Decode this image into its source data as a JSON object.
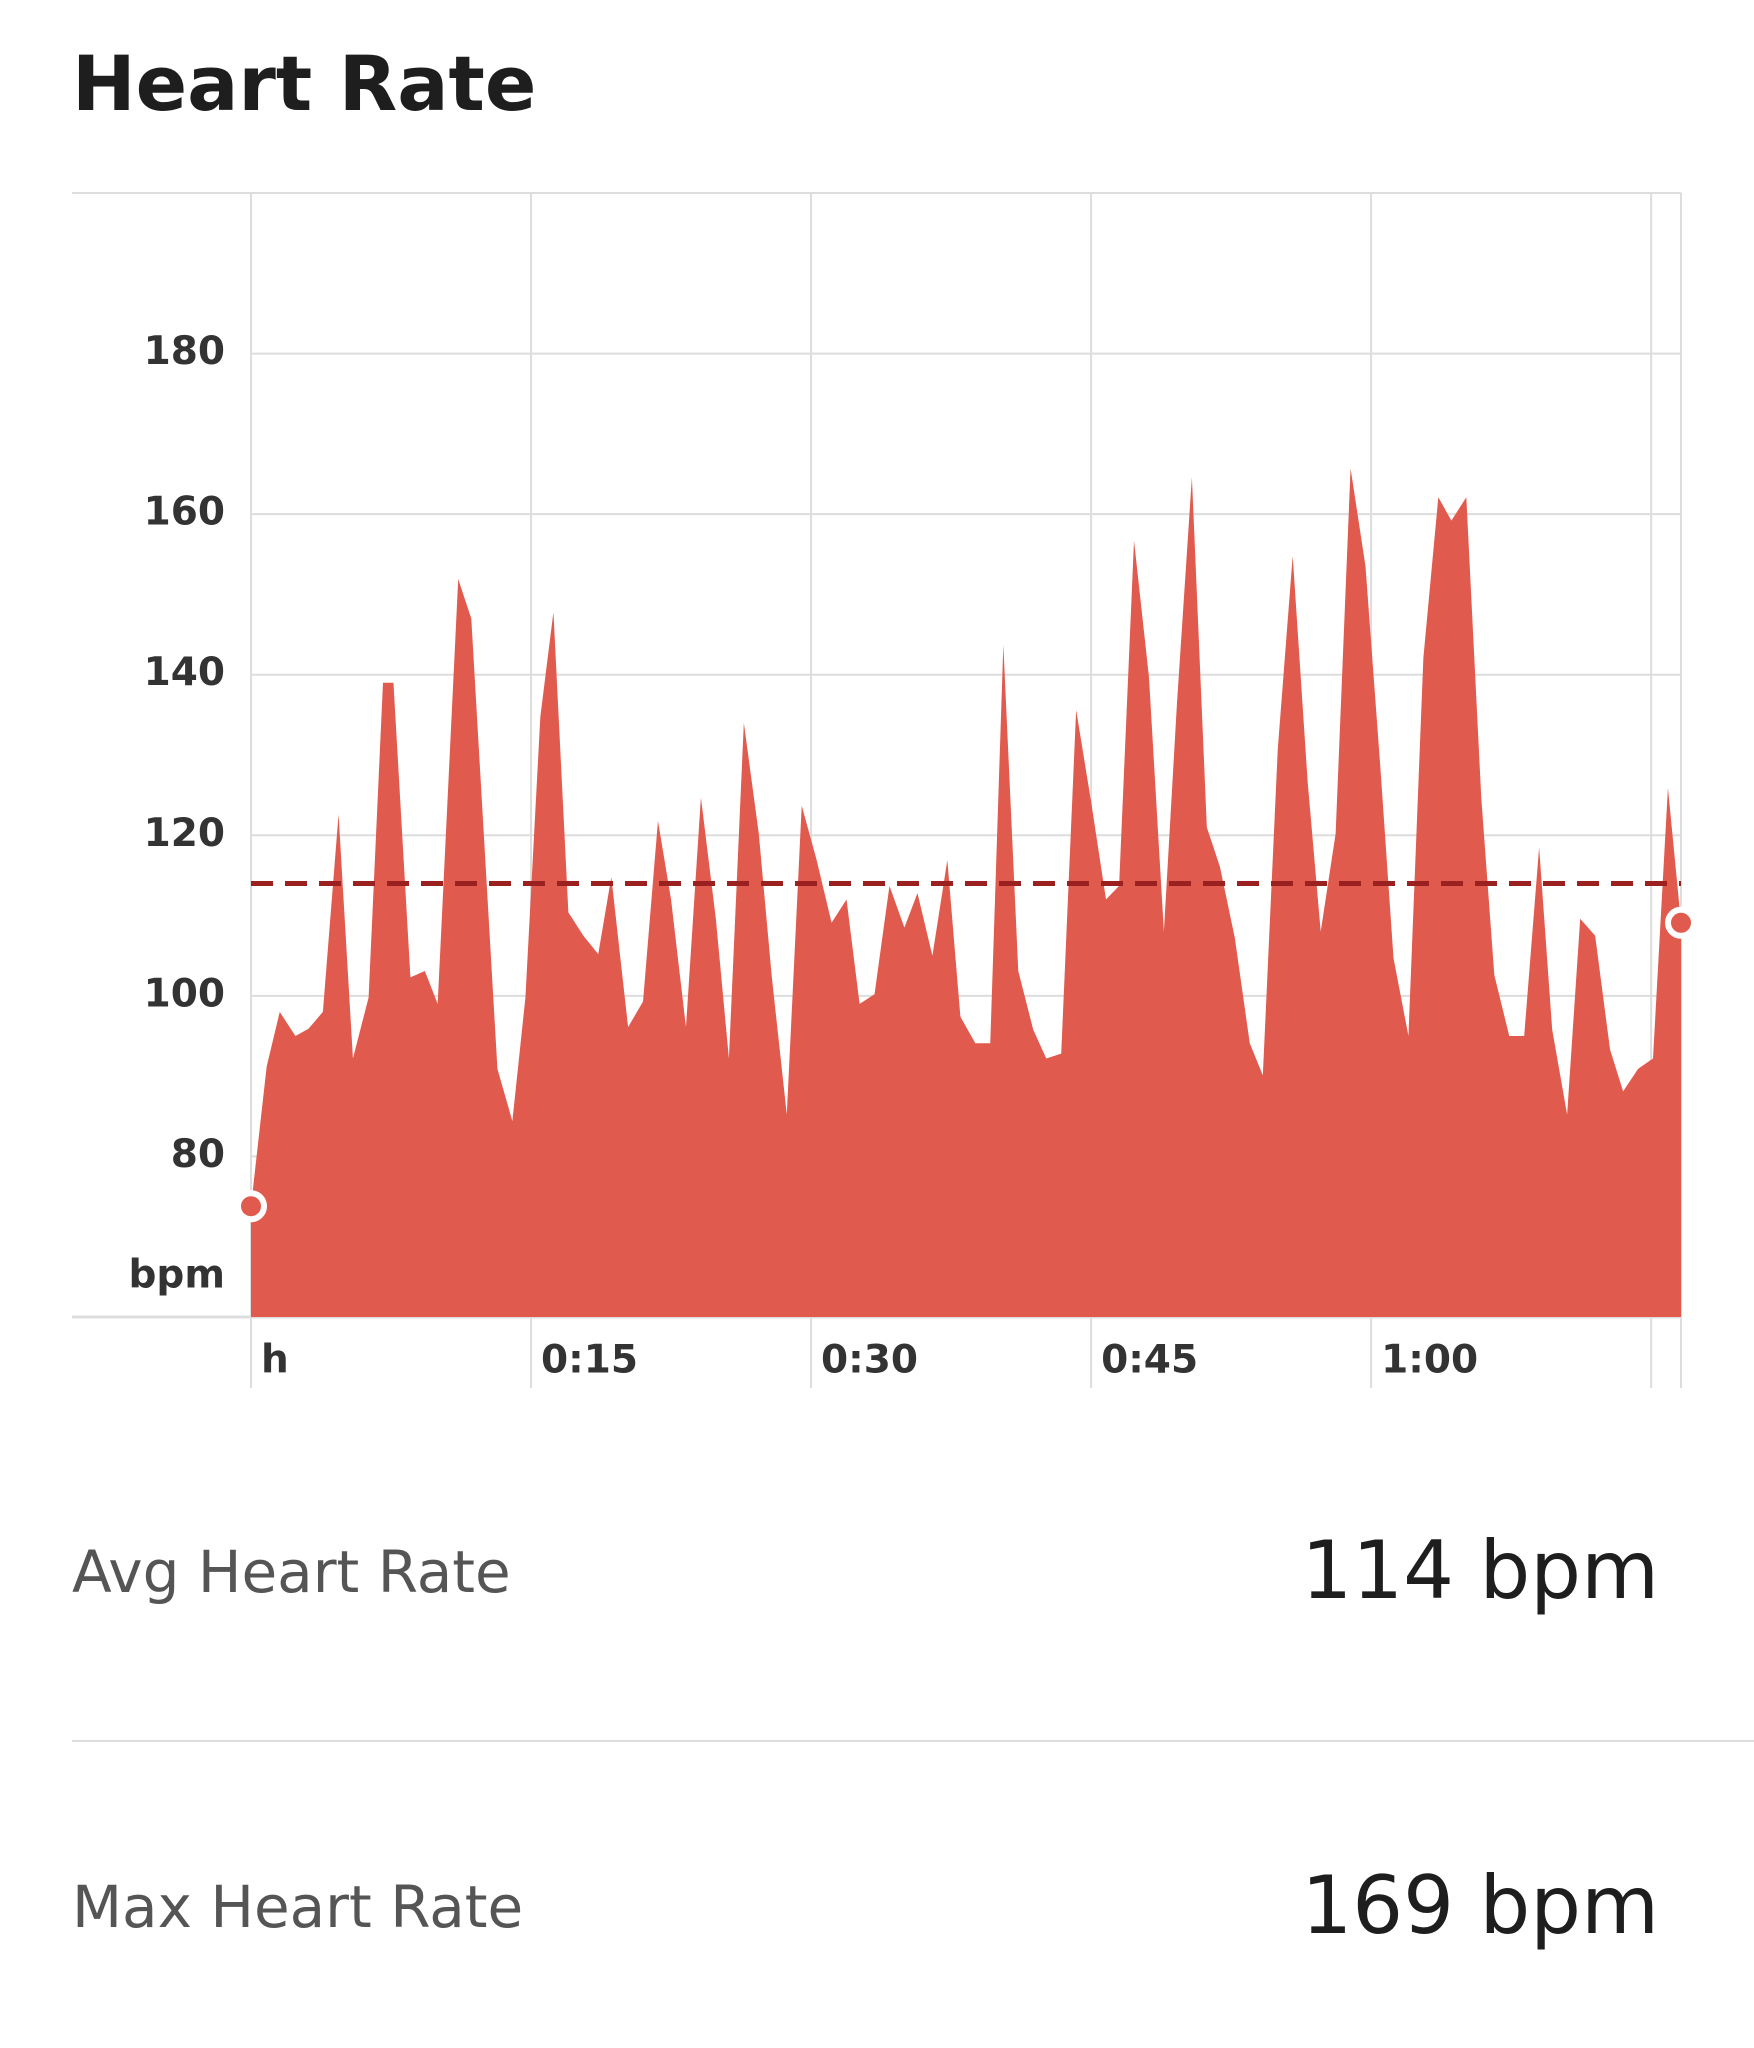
{
  "chart_data": {
    "type": "area",
    "title": "Heart Rate",
    "y_label": "bpm",
    "color": "#e05a4e",
    "average": 114,
    "average_color": "#9b2121",
    "x": [
      0,
      0.84,
      1.54,
      2.38,
      3.08,
      3.85,
      4.69,
      5.46,
      6.3,
      7.07,
      7.63,
      8.54,
      9.31,
      10.0,
      11.1,
      11.8,
      13.2,
      14.0,
      14.7,
      15.5,
      16.2,
      17.0,
      17.8,
      18.6,
      19.3,
      20.2,
      21.0,
      21.8,
      22.5,
      23.3,
      24.1,
      24.9,
      25.6,
      26.4,
      27.2,
      27.9,
      28.7,
      29.5,
      30.3,
      31.1,
      31.9,
      32.6,
      33.4,
      34.2,
      35.0,
      35.7,
      36.5,
      37.3,
      38.0,
      38.8,
      39.6,
      40.3,
      41.1,
      41.9,
      42.6,
      43.4,
      44.2,
      45.0,
      45.8,
      46.5,
      47.3,
      48.1,
      48.9,
      49.6,
      50.4,
      51.2,
      51.9,
      52.7,
      53.5,
      54.2,
      55.0,
      55.8,
      56.6,
      57.3,
      58.1,
      58.9,
      59.7,
      60.5,
      61.2,
      62.0,
      62.8,
      63.6,
      64.3,
      65.1,
      65.9,
      66.6,
      67.4,
      68.2,
      69.0,
      69.7,
      70.5,
      71.2,
      72.0,
      72.8,
      73.5,
      74.3,
      75.1,
      75.9,
      76.6
    ],
    "values": [
      73.8,
      91.2,
      98.0,
      95.0,
      95.9,
      98.0,
      122.6,
      92.2,
      99.8,
      139.0,
      139.0,
      102.3,
      103.1,
      99.0,
      151.9,
      147.0,
      90.9,
      84.4,
      99.8,
      134.8,
      147.8,
      110.4,
      107.5,
      105.2,
      114.8,
      96.1,
      99.3,
      121.8,
      112.0,
      96.1,
      124.7,
      109.6,
      92.2,
      134.0,
      120.2,
      102.3,
      85.2,
      123.7,
      116.9,
      109.1,
      112.0,
      99.0,
      100.2,
      113.7,
      108.5,
      112.8,
      105.0,
      116.9,
      97.4,
      94.1,
      94.1,
      143.7,
      103.1,
      95.8,
      92.2,
      92.8,
      135.6,
      124.2,
      112.0,
      113.7,
      156.7,
      139.7,
      108.0,
      136.4,
      164.6,
      121.0,
      116.1,
      107.2,
      94.1,
      90.1,
      130.7,
      154.8,
      126.7,
      108.0,
      120.2,
      165.7,
      153.5,
      128.3,
      104.7,
      95.0,
      142.1,
      162.1,
      159.2,
      162.1,
      124.7,
      102.6,
      95.0,
      95.0,
      118.5,
      95.8,
      85.2,
      109.6,
      107.5,
      93.3,
      88.1,
      90.9,
      92.2,
      125.9,
      109.1
    ],
    "xlim": [
      0,
      76.6
    ],
    "ylim": [
      60,
      200
    ],
    "xticks": [
      {
        "value": 0,
        "label": "h"
      },
      {
        "value": 15,
        "label": "0:15"
      },
      {
        "value": 30,
        "label": "0:30"
      },
      {
        "value": 45,
        "label": "0:45"
      },
      {
        "value": 60,
        "label": "1:00"
      },
      {
        "value": 75
      }
    ],
    "yticks": [
      80,
      100,
      120,
      140,
      160,
      180
    ],
    "grid": true
  },
  "stats": [
    {
      "label": "Avg Heart Rate",
      "value": "114 bpm"
    },
    {
      "label": "Max Heart Rate",
      "value": "169 bpm"
    }
  ]
}
